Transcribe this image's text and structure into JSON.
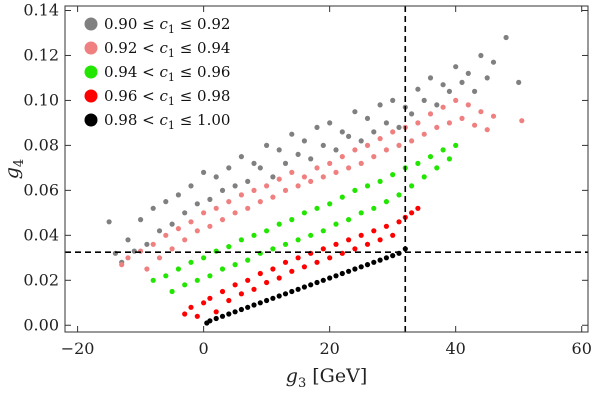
{
  "chart_data": {
    "type": "scatter",
    "xlabel": "g3 [GeV]",
    "xlabel_parts": {
      "symbol": "g",
      "sub": "3",
      "unit": "[GeV]"
    },
    "ylabel": "g4",
    "ylabel_parts": {
      "symbol": "g",
      "sub": "4"
    },
    "xlim": [
      -22,
      61
    ],
    "ylim": [
      -0.003,
      0.142
    ],
    "x_ticks": [
      -20,
      0,
      20,
      40,
      60
    ],
    "x_tick_labels": [
      "−20",
      "0",
      "20",
      "40",
      "60"
    ],
    "y_ticks": [
      0.0,
      0.02,
      0.04,
      0.06,
      0.08,
      0.1,
      0.12,
      0.14
    ],
    "y_tick_labels": [
      "0.00",
      "0.02",
      "0.04",
      "0.06",
      "0.08",
      "0.10",
      "0.12",
      "0.14"
    ],
    "reference_lines": {
      "vertical_x": 32,
      "horizontal_y": 0.0325
    },
    "legend_position": "top-left",
    "grid": false,
    "series": [
      {
        "name": "0.90 ≤ c1 ≤ 0.92",
        "label_parts": [
          "0.90 ≤ ",
          "c",
          "1",
          " ≤ 0.92"
        ],
        "color": "#808080",
        "points": [
          [
            -15,
            0.046
          ],
          [
            -14,
            0.032
          ],
          [
            -12,
            0.038
          ],
          [
            -10,
            0.047
          ],
          [
            -8,
            0.052
          ],
          [
            -6,
            0.055
          ],
          [
            -4,
            0.058
          ],
          [
            -2,
            0.062
          ],
          [
            0,
            0.068
          ],
          [
            2,
            0.066
          ],
          [
            4,
            0.07
          ],
          [
            6,
            0.075
          ],
          [
            8,
            0.072
          ],
          [
            10,
            0.08
          ],
          [
            12,
            0.078
          ],
          [
            14,
            0.085
          ],
          [
            16,
            0.082
          ],
          [
            18,
            0.088
          ],
          [
            20,
            0.09
          ],
          [
            22,
            0.086
          ],
          [
            24,
            0.095
          ],
          [
            26,
            0.092
          ],
          [
            28,
            0.098
          ],
          [
            30,
            0.1
          ],
          [
            32,
            0.097
          ],
          [
            34,
            0.105
          ],
          [
            36,
            0.11
          ],
          [
            38,
            0.107
          ],
          [
            40,
            0.115
          ],
          [
            42,
            0.112
          ],
          [
            44,
            0.12
          ],
          [
            46,
            0.117
          ],
          [
            48,
            0.128
          ],
          [
            50,
            0.108
          ],
          [
            -13,
            0.028
          ],
          [
            -11,
            0.033
          ],
          [
            -9,
            0.036
          ],
          [
            -7,
            0.042
          ],
          [
            -5,
            0.045
          ],
          [
            -3,
            0.05
          ],
          [
            -1,
            0.054
          ],
          [
            1,
            0.056
          ],
          [
            3,
            0.06
          ],
          [
            5,
            0.062
          ],
          [
            7,
            0.064
          ],
          [
            9,
            0.07
          ],
          [
            11,
            0.066
          ],
          [
            13,
            0.072
          ],
          [
            15,
            0.076
          ],
          [
            17,
            0.074
          ],
          [
            19,
            0.08
          ],
          [
            21,
            0.078
          ],
          [
            23,
            0.084
          ],
          [
            25,
            0.082
          ],
          [
            27,
            0.086
          ],
          [
            29,
            0.09
          ],
          [
            31,
            0.088
          ],
          [
            33,
            0.094
          ],
          [
            35,
            0.1
          ],
          [
            37,
            0.098
          ],
          [
            39,
            0.104
          ],
          [
            41,
            0.108
          ],
          [
            43,
            0.104
          ],
          [
            45,
            0.11
          ]
        ]
      },
      {
        "name": "0.92 < c1 ≤ 0.94",
        "label_parts": [
          "0.92 < ",
          "c",
          "1",
          " ≤ 0.94"
        ],
        "color": "#f08080",
        "points": [
          [
            -13,
            0.027
          ],
          [
            -12,
            0.03
          ],
          [
            -10,
            0.033
          ],
          [
            -8,
            0.036
          ],
          [
            -6,
            0.04
          ],
          [
            -4,
            0.043
          ],
          [
            -2,
            0.046
          ],
          [
            0,
            0.05
          ],
          [
            2,
            0.052
          ],
          [
            4,
            0.055
          ],
          [
            6,
            0.058
          ],
          [
            8,
            0.06
          ],
          [
            10,
            0.062
          ],
          [
            12,
            0.065
          ],
          [
            14,
            0.068
          ],
          [
            16,
            0.066
          ],
          [
            18,
            0.07
          ],
          [
            20,
            0.072
          ],
          [
            22,
            0.075
          ],
          [
            24,
            0.078
          ],
          [
            26,
            0.08
          ],
          [
            28,
            0.083
          ],
          [
            30,
            0.086
          ],
          [
            32,
            0.088
          ],
          [
            34,
            0.09
          ],
          [
            36,
            0.094
          ],
          [
            38,
            0.097
          ],
          [
            40,
            0.1
          ],
          [
            42,
            0.098
          ],
          [
            44,
            0.095
          ],
          [
            46,
            0.093
          ],
          [
            -9,
            0.025
          ],
          [
            -7,
            0.03
          ],
          [
            -5,
            0.034
          ],
          [
            -3,
            0.038
          ],
          [
            -1,
            0.042
          ],
          [
            1,
            0.044
          ],
          [
            3,
            0.047
          ],
          [
            5,
            0.05
          ],
          [
            7,
            0.052
          ],
          [
            9,
            0.055
          ],
          [
            11,
            0.057
          ],
          [
            13,
            0.06
          ],
          [
            15,
            0.062
          ],
          [
            17,
            0.064
          ],
          [
            19,
            0.066
          ],
          [
            21,
            0.068
          ],
          [
            23,
            0.07
          ],
          [
            25,
            0.072
          ],
          [
            27,
            0.075
          ],
          [
            29,
            0.078
          ],
          [
            31,
            0.08
          ],
          [
            33,
            0.082
          ],
          [
            35,
            0.085
          ],
          [
            37,
            0.088
          ],
          [
            39,
            0.09
          ],
          [
            41,
            0.092
          ],
          [
            43,
            0.089
          ],
          [
            45,
            0.087
          ],
          [
            50.5,
            0.091
          ]
        ]
      },
      {
        "name": "0.94 < c1 ≤ 0.96",
        "label_parts": [
          "0.94 < ",
          "c",
          "1",
          " ≤ 0.96"
        ],
        "color": "#22e600",
        "points": [
          [
            -8,
            0.02
          ],
          [
            -6,
            0.022
          ],
          [
            -4,
            0.025
          ],
          [
            -2,
            0.028
          ],
          [
            0,
            0.03
          ],
          [
            2,
            0.033
          ],
          [
            4,
            0.035
          ],
          [
            6,
            0.038
          ],
          [
            8,
            0.04
          ],
          [
            10,
            0.042
          ],
          [
            12,
            0.045
          ],
          [
            14,
            0.047
          ],
          [
            16,
            0.05
          ],
          [
            18,
            0.052
          ],
          [
            20,
            0.054
          ],
          [
            22,
            0.057
          ],
          [
            24,
            0.06
          ],
          [
            26,
            0.062
          ],
          [
            28,
            0.064
          ],
          [
            30,
            0.067
          ],
          [
            32,
            0.07
          ],
          [
            34,
            0.072
          ],
          [
            36,
            0.075
          ],
          [
            38,
            0.078
          ],
          [
            40,
            0.08
          ],
          [
            -5,
            0.015
          ],
          [
            -3,
            0.018
          ],
          [
            -1,
            0.02
          ],
          [
            1,
            0.022
          ],
          [
            3,
            0.025
          ],
          [
            5,
            0.027
          ],
          [
            7,
            0.029
          ],
          [
            9,
            0.032
          ],
          [
            11,
            0.034
          ],
          [
            13,
            0.036
          ],
          [
            15,
            0.038
          ],
          [
            17,
            0.04
          ],
          [
            19,
            0.042
          ],
          [
            21,
            0.045
          ],
          [
            23,
            0.047
          ],
          [
            25,
            0.05
          ],
          [
            27,
            0.052
          ],
          [
            29,
            0.055
          ],
          [
            31,
            0.058
          ],
          [
            33,
            0.062
          ],
          [
            35,
            0.066
          ],
          [
            37,
            0.07
          ],
          [
            39,
            0.074
          ]
        ]
      },
      {
        "name": "0.96 < c1 ≤ 0.98",
        "label_parts": [
          "0.96 < ",
          "c",
          "1",
          " ≤ 0.98"
        ],
        "color": "#ff0000",
        "points": [
          [
            -3,
            0.005
          ],
          [
            -2,
            0.008
          ],
          [
            -1,
            0.004
          ],
          [
            0,
            0.01
          ],
          [
            1,
            0.012
          ],
          [
            2,
            0.006
          ],
          [
            3,
            0.015
          ],
          [
            4,
            0.011
          ],
          [
            5,
            0.018
          ],
          [
            6,
            0.014
          ],
          [
            7,
            0.02
          ],
          [
            8,
            0.016
          ],
          [
            9,
            0.023
          ],
          [
            10,
            0.019
          ],
          [
            11,
            0.025
          ],
          [
            12,
            0.021
          ],
          [
            13,
            0.028
          ],
          [
            14,
            0.024
          ],
          [
            15,
            0.03
          ],
          [
            16,
            0.026
          ],
          [
            17,
            0.032
          ],
          [
            18,
            0.028
          ],
          [
            19,
            0.034
          ],
          [
            20,
            0.03
          ],
          [
            21,
            0.036
          ],
          [
            22,
            0.032
          ],
          [
            23,
            0.038
          ],
          [
            24,
            0.034
          ],
          [
            25,
            0.04
          ],
          [
            26,
            0.036
          ],
          [
            27,
            0.042
          ],
          [
            28,
            0.038
          ],
          [
            29,
            0.044
          ],
          [
            30,
            0.04
          ],
          [
            31,
            0.046
          ],
          [
            32,
            0.048
          ],
          [
            33,
            0.05
          ],
          [
            34,
            0.052
          ]
        ]
      },
      {
        "name": "0.98 < c1 ≤ 1.00",
        "label_parts": [
          "0.98 < ",
          "c",
          "1",
          " ≤ 1.00"
        ],
        "color": "#000000",
        "points": [
          [
            0.5,
            0.001
          ],
          [
            1,
            0.002
          ],
          [
            2,
            0.003
          ],
          [
            3,
            0.004
          ],
          [
            4,
            0.005
          ],
          [
            5,
            0.006
          ],
          [
            6,
            0.007
          ],
          [
            7,
            0.008
          ],
          [
            8,
            0.009
          ],
          [
            9,
            0.01
          ],
          [
            10,
            0.011
          ],
          [
            11,
            0.012
          ],
          [
            12,
            0.013
          ],
          [
            13,
            0.014
          ],
          [
            14,
            0.015
          ],
          [
            15,
            0.016
          ],
          [
            16,
            0.017
          ],
          [
            17,
            0.018
          ],
          [
            18,
            0.019
          ],
          [
            19,
            0.02
          ],
          [
            20,
            0.021
          ],
          [
            21,
            0.022
          ],
          [
            22,
            0.023
          ],
          [
            23,
            0.024
          ],
          [
            24,
            0.025
          ],
          [
            25,
            0.026
          ],
          [
            26,
            0.027
          ],
          [
            27,
            0.028
          ],
          [
            28,
            0.029
          ],
          [
            29,
            0.03
          ],
          [
            30,
            0.031
          ],
          [
            31,
            0.032
          ],
          [
            32,
            0.034
          ]
        ]
      }
    ]
  }
}
